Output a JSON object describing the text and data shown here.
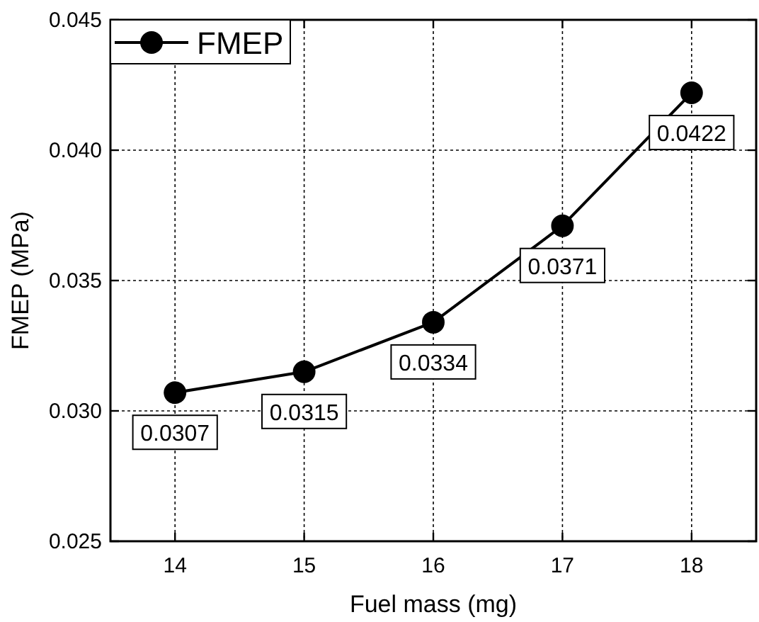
{
  "chart_data": {
    "type": "line",
    "xlabel": "Fuel mass (mg)",
    "ylabel": "FMEP (MPa)",
    "x": [
      14,
      15,
      16,
      17,
      18
    ],
    "series": [
      {
        "name": "FMEP",
        "color": "#000000",
        "values": [
          0.0307,
          0.0315,
          0.0334,
          0.0371,
          0.0422
        ]
      }
    ],
    "xlim": [
      13.5,
      18.5
    ],
    "xticks": [
      14,
      15,
      16,
      17,
      18
    ],
    "ylim": [
      0.025,
      0.045
    ],
    "yticks": [
      {
        "value": 0.025,
        "label": "0.025"
      },
      {
        "value": 0.03,
        "label": "0.030"
      },
      {
        "value": 0.035,
        "label": "0.035"
      },
      {
        "value": 0.04,
        "label": "0.040"
      },
      {
        "value": 0.045,
        "label": "0.045"
      }
    ],
    "grid": true,
    "legend": "top left",
    "marker": "circle",
    "line_style": "solid",
    "data_labels": true
  }
}
